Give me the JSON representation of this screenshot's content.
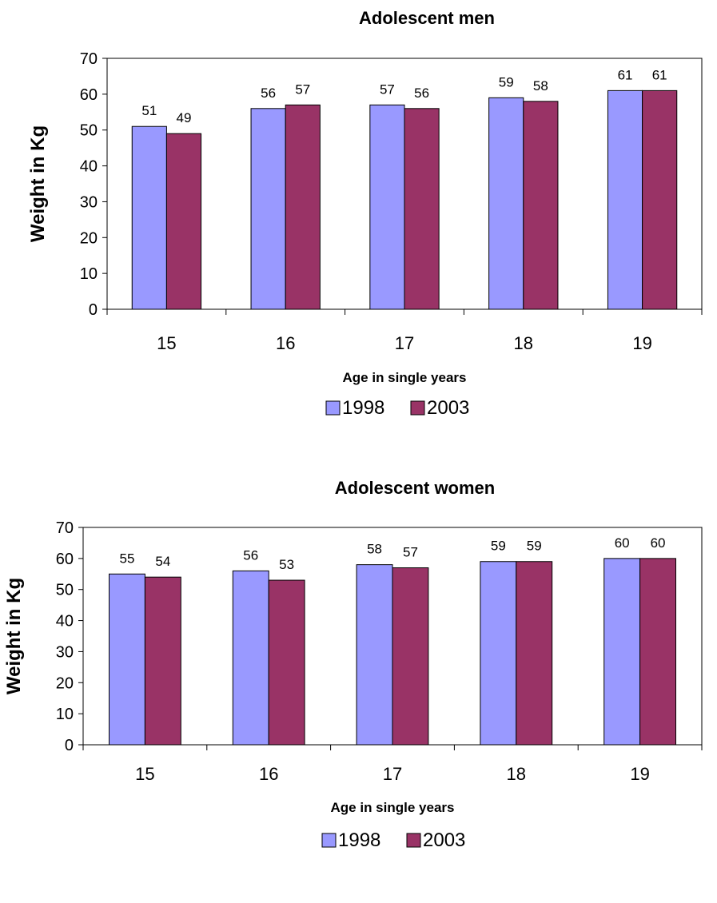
{
  "colors": {
    "s1998": "#9999ff",
    "s2003": "#993366"
  },
  "chart_data": [
    {
      "type": "bar",
      "title": "Adolescent men",
      "xlabel": "Age in single years",
      "ylabel": "Weight in Kg",
      "ylim": [
        0,
        70
      ],
      "yticks": [
        "0",
        "10",
        "20",
        "30",
        "40",
        "50",
        "60",
        "70"
      ],
      "categories": [
        "15",
        "16",
        "17",
        "18",
        "19"
      ],
      "series": [
        {
          "name": "1998",
          "values": [
            51,
            56,
            57,
            59,
            61
          ],
          "labels": [
            "51",
            "56",
            "57",
            "59",
            "61"
          ]
        },
        {
          "name": "2003",
          "values": [
            49,
            57,
            56,
            58,
            61
          ],
          "labels": [
            "49",
            "57",
            "56",
            "58",
            "61"
          ]
        }
      ],
      "grid": false,
      "legend": "bottom"
    },
    {
      "type": "bar",
      "title": "Adolescent women",
      "xlabel": "Age in single years",
      "ylabel": "Weight in Kg",
      "ylim": [
        0,
        70
      ],
      "yticks": [
        "0",
        "10",
        "20",
        "30",
        "40",
        "50",
        "60",
        "70"
      ],
      "categories": [
        "15",
        "16",
        "17",
        "18",
        "19"
      ],
      "series": [
        {
          "name": "1998",
          "values": [
            55,
            56,
            58,
            59,
            60
          ],
          "labels": [
            "55",
            "56",
            "58",
            "59",
            "60"
          ]
        },
        {
          "name": "2003",
          "values": [
            54,
            53,
            57,
            59,
            60
          ],
          "labels": [
            "54",
            "53",
            "57",
            "59",
            "60"
          ]
        }
      ],
      "grid": false,
      "legend": "bottom"
    }
  ]
}
